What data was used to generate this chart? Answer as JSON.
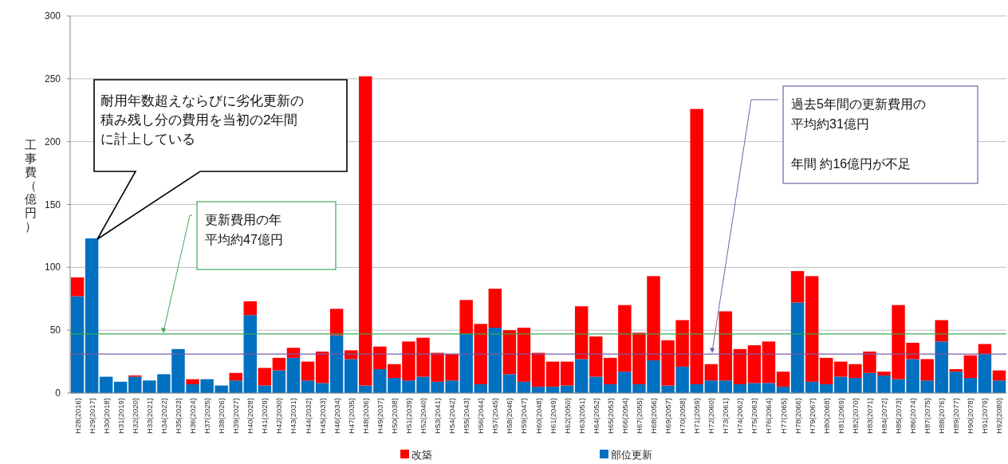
{
  "chart_data": {
    "type": "bar",
    "stacked": true,
    "ylabel": "工事費（億円）",
    "categories": [
      "H28(2016)",
      "H29(2017)",
      "H30(2018)",
      "H31(2019)",
      "H32(2020)",
      "H33(2021)",
      "H34(2022)",
      "H35(2023)",
      "H36(2024)",
      "H37(2025)",
      "H38(2026)",
      "H39(2027)",
      "H40(2028)",
      "H41(2029)",
      "H42(2030)",
      "H43(2031)",
      "H44(2032)",
      "H45(2033)",
      "H46(2034)",
      "H47(2035)",
      "H48(2036)",
      "H49(2037)",
      "H50(2038)",
      "H51(2039)",
      "H52(2040)",
      "H53(2041)",
      "H54(2042)",
      "H55(2043)",
      "H56(2044)",
      "H57(2045)",
      "H58(2046)",
      "H59(2047)",
      "H60(2048)",
      "H61(2049)",
      "H62(2050)",
      "H63(2051)",
      "H64(2052)",
      "H65(2053)",
      "H66(2054)",
      "H67(2055)",
      "H68(2056)",
      "H69(2057)",
      "H70(2058)",
      "H71(2059)",
      "H72(2060)",
      "H73(2061)",
      "H74(2062)",
      "H75(2063)",
      "H76(2064)",
      "H77(2065)",
      "H78(2066)",
      "H79(2067)",
      "H80(2068)",
      "H81(2069)",
      "H82(2070)",
      "H83(2071)",
      "H84(2072)",
      "H85(2073)",
      "H86(2074)",
      "H87(2075)",
      "H88(2076)",
      "H89(2077)",
      "H90(2078)",
      "H91(2079)",
      "H92(2080)"
    ],
    "series": [
      {
        "name": "部位更新",
        "color": "#0070c0",
        "values": [
          77,
          123,
          13,
          9,
          13,
          10,
          15,
          35,
          7,
          11,
          6,
          10,
          62,
          6,
          18,
          28,
          10,
          8,
          46,
          27,
          6,
          19,
          12,
          10,
          13,
          9,
          10,
          47,
          7,
          52,
          15,
          9,
          5,
          5,
          6,
          27,
          13,
          7,
          17,
          7,
          26,
          6,
          21,
          7,
          10,
          10,
          7,
          8,
          8,
          5,
          72,
          9,
          7,
          13,
          12,
          16,
          14,
          11,
          27,
          10,
          41,
          17,
          12,
          31,
          10
        ]
      },
      {
        "name": "改築",
        "color": "#ff0000",
        "values": [
          15,
          0,
          0,
          0,
          1,
          0,
          0,
          0,
          4,
          0,
          0,
          6,
          11,
          14,
          10,
          8,
          15,
          25,
          21,
          7,
          246,
          18,
          11,
          31,
          31,
          23,
          21,
          27,
          48,
          31,
          35,
          43,
          27,
          20,
          19,
          42,
          32,
          21,
          53,
          41,
          67,
          36,
          37,
          219,
          13,
          55,
          28,
          30,
          33,
          12,
          25,
          84,
          21,
          12,
          11,
          17,
          3,
          59,
          13,
          17,
          17,
          2,
          18,
          8,
          8
        ]
      }
    ],
    "ylim": [
      0,
      300
    ],
    "yticks": [
      0,
      50,
      100,
      150,
      200,
      250,
      300
    ],
    "grid": "y",
    "legend": "bottom",
    "ref_lines": [
      {
        "axis": "y",
        "value": 47,
        "color": "#3daa55",
        "label": "更新費用の年平均約47億円"
      },
      {
        "axis": "y",
        "value": 31,
        "color": "#7a5ea8",
        "label": "過去5年間の更新費用の平均約31億円"
      }
    ],
    "annotations": [
      "耐用年数超えならびに劣化更新の積み残し分の費用を当初の2年間に計上している",
      "年間 約16億円が不足"
    ]
  }
}
